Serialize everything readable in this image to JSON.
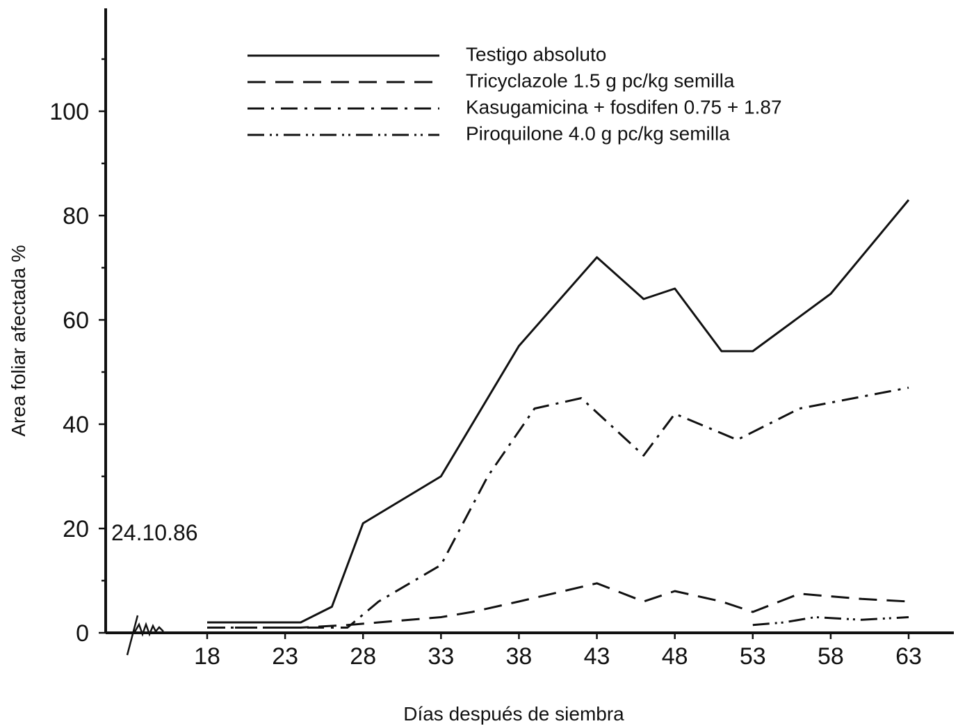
{
  "chart_data": {
    "type": "line",
    "title": "",
    "xlabel": "Días después de siembra",
    "ylabel": "Area foliar afectada %",
    "xlim": [
      18,
      65
    ],
    "ylim": [
      0,
      120
    ],
    "x_ticks": [
      18,
      23,
      28,
      33,
      38,
      43,
      48,
      53,
      58,
      63
    ],
    "y_ticks": [
      0,
      20,
      40,
      60,
      80,
      100
    ],
    "annotation": "24.10.86",
    "axis_break": true,
    "grid": false,
    "legend_position": "top",
    "series": [
      {
        "name": "Testigo absoluto",
        "style": "solid",
        "x": [
          18,
          24,
          26,
          28,
          33,
          38,
          43,
          46,
          48,
          51,
          53,
          58,
          63
        ],
        "y": [
          2,
          2,
          5,
          21,
          30,
          55,
          72,
          64,
          66,
          54,
          54,
          65,
          83
        ]
      },
      {
        "name": "Tricyclazole 1.5 g pc/kg semilla",
        "style": "dashed",
        "x": [
          18,
          24,
          27,
          29,
          33,
          35,
          38,
          43,
          46,
          48,
          51,
          53,
          56,
          60,
          63
        ],
        "y": [
          1,
          1,
          1.5,
          2,
          3,
          4,
          6,
          9.5,
          6,
          8,
          6,
          4,
          7.5,
          6.5,
          6
        ]
      },
      {
        "name": "Kasugamicina + fosdifen 0.75 + 1.87",
        "style": "dash-dot",
        "x": [
          18,
          24,
          27,
          29,
          33,
          36,
          39,
          42,
          46,
          48,
          52,
          54,
          56,
          63
        ],
        "y": [
          1,
          1,
          1,
          6,
          13,
          30,
          43,
          45,
          34,
          42,
          37,
          40,
          43,
          47
        ]
      },
      {
        "name": "Piroquilone 4.0 g pc/kg semilla",
        "style": "dash-dot-dot",
        "x": [
          53,
          55,
          57,
          60,
          63
        ],
        "y": [
          1.5,
          2,
          3,
          2.5,
          3
        ]
      }
    ]
  }
}
